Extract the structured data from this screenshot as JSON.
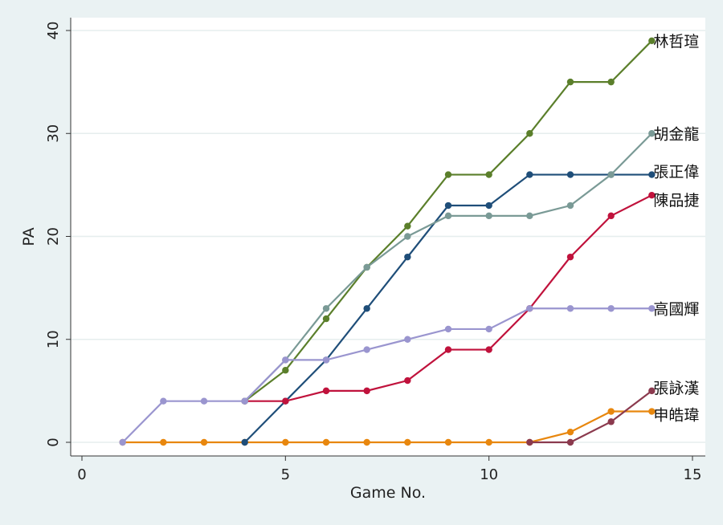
{
  "chart_data": {
    "type": "line",
    "title": "",
    "xlabel": "Game No.",
    "ylabel": "PA",
    "xlim": [
      0,
      15
    ],
    "ylim": [
      0,
      40
    ],
    "xticks": [
      "0",
      "5",
      "10",
      "15"
    ],
    "yticks": [
      "0",
      "10",
      "20",
      "30",
      "40"
    ],
    "grid": true,
    "series": [
      {
        "name": "申皓瑋",
        "color": "#e8870e",
        "x": [
          1,
          2,
          3,
          4,
          5,
          6,
          7,
          8,
          9,
          10,
          11,
          12,
          13,
          14
        ],
        "values": [
          0,
          0,
          0,
          0,
          0,
          0,
          0,
          0,
          0,
          0,
          0,
          1,
          3,
          3
        ]
      },
      {
        "name": "張詠漢",
        "color": "#8b3a4e",
        "x": [
          11,
          12,
          13,
          14
        ],
        "values": [
          0,
          0,
          2,
          5
        ]
      },
      {
        "name": "張正偉",
        "color": "#1f4e79",
        "x": [
          4,
          5,
          6,
          7,
          8,
          9,
          10,
          11,
          12,
          13,
          14
        ],
        "values": [
          0,
          4,
          8,
          13,
          18,
          23,
          23,
          26,
          26,
          26,
          26
        ]
      },
      {
        "name": "陳品捷",
        "color": "#c0123c",
        "x": [
          4,
          5,
          6,
          7,
          8,
          9,
          10,
          11,
          12,
          13,
          14
        ],
        "values": [
          4,
          4,
          5,
          5,
          6,
          9,
          9,
          13,
          18,
          22,
          24
        ]
      },
      {
        "name": "林哲瑄",
        "color": "#5b7f2b",
        "x": [
          4,
          5,
          6,
          7,
          8,
          9,
          10,
          11,
          12,
          13,
          14
        ],
        "values": [
          4,
          7,
          12,
          17,
          21,
          26,
          26,
          30,
          35,
          35,
          39
        ]
      },
      {
        "name": "胡金龍",
        "color": "#7a9a96",
        "x": [
          4,
          5,
          6,
          7,
          8,
          9,
          10,
          11,
          12,
          13,
          14
        ],
        "values": [
          4,
          8,
          13,
          17,
          20,
          22,
          22,
          22,
          23,
          26,
          30
        ]
      },
      {
        "name": "高國輝",
        "color": "#9a95cf",
        "x": [
          1,
          2,
          3,
          4,
          5,
          6,
          7,
          8,
          9,
          10,
          11,
          12,
          13,
          14
        ],
        "values": [
          0,
          4,
          4,
          4,
          8,
          8,
          9,
          10,
          11,
          11,
          13,
          13,
          13,
          13
        ]
      }
    ],
    "legend": "line-end labels on right"
  }
}
